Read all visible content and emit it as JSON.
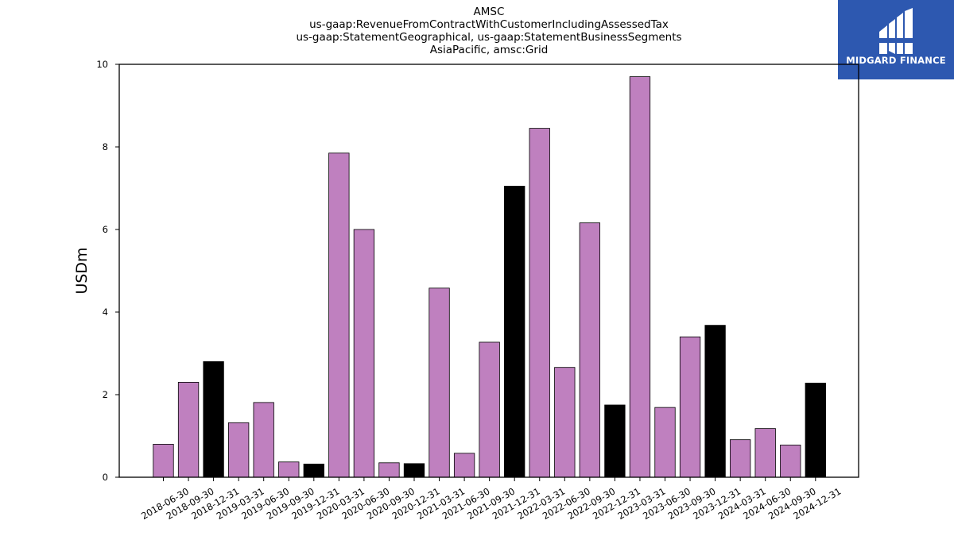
{
  "chart_data": {
    "type": "bar",
    "title_lines": [
      "AMSC",
      "us-gaap:RevenueFromContractWithCustomerIncludingAssessedTax",
      "us-gaap:StatementGeographical, us-gaap:StatementBusinessSegments",
      "AsiaPacific, amsc:Grid"
    ],
    "xlabel": "",
    "ylabel": "USDm",
    "ylim": [
      0,
      10
    ],
    "yticks": [
      0,
      2,
      4,
      6,
      8,
      10
    ],
    "grid": false,
    "categories": [
      "2018-06-30",
      "2018-09-30",
      "2018-12-31",
      "2019-03-31",
      "2019-06-30",
      "2019-09-30",
      "2019-12-31",
      "2020-03-31",
      "2020-06-30",
      "2020-09-30",
      "2020-12-31",
      "2021-03-31",
      "2021-06-30",
      "2021-09-30",
      "2021-12-31",
      "2022-03-31",
      "2022-06-30",
      "2022-09-30",
      "2022-12-31",
      "2023-03-31",
      "2023-06-30",
      "2023-09-30",
      "2023-12-31",
      "2024-03-31",
      "2024-06-30",
      "2024-09-30",
      "2024-12-31"
    ],
    "values": [
      0.8,
      2.3,
      2.8,
      1.32,
      1.81,
      0.37,
      0.32,
      7.85,
      6.0,
      0.35,
      0.33,
      4.58,
      0.58,
      3.27,
      7.05,
      8.45,
      2.66,
      6.16,
      1.75,
      9.7,
      1.69,
      3.4,
      3.68,
      0.91,
      1.18,
      0.78,
      2.28
    ],
    "colors": {
      "quarter": "#bf80bf",
      "year_end": "#000000",
      "edge": "#000000"
    }
  },
  "logo": {
    "text": "MIDGARD FINANCE",
    "background": "#2d58b0"
  }
}
